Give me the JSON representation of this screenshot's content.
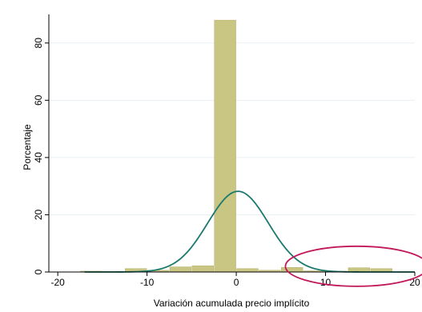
{
  "chart_data": {
    "type": "bar",
    "subtype": "histogram with normal density overlay",
    "title": "",
    "xlabel": "Variación acumulada precio implícito",
    "ylabel": "Porcentaje",
    "xlim": [
      -21,
      20
    ],
    "ylim": [
      0,
      90
    ],
    "x_ticks": [
      -20,
      -10,
      0,
      10,
      20
    ],
    "x_tick_labels": [
      "-20",
      "-10",
      "0",
      "10",
      "20"
    ],
    "y_ticks": [
      0,
      20,
      40,
      60,
      80
    ],
    "y_tick_labels": [
      "0",
      "20",
      "40",
      "60",
      "80"
    ],
    "grid": true,
    "legend": "none",
    "bin_width": 2.5,
    "bins": [
      {
        "start": -17.5,
        "end": -15.0,
        "value": 0.3
      },
      {
        "start": -15.0,
        "end": -12.5,
        "value": 0.2
      },
      {
        "start": -12.5,
        "end": -10.0,
        "value": 1.2
      },
      {
        "start": -10.0,
        "end": -7.5,
        "value": 0.6
      },
      {
        "start": -7.5,
        "end": -5.0,
        "value": 1.8
      },
      {
        "start": -5.0,
        "end": -2.5,
        "value": 2.2
      },
      {
        "start": -2.5,
        "end": 0.0,
        "value": 88.0
      },
      {
        "start": 0.0,
        "end": 2.5,
        "value": 1.2
      },
      {
        "start": 2.5,
        "end": 5.0,
        "value": 0.6
      },
      {
        "start": 5.0,
        "end": 7.5,
        "value": 1.6
      },
      {
        "start": 7.5,
        "end": 10.0,
        "value": 0.4
      },
      {
        "start": 10.0,
        "end": 12.5,
        "value": 0.3
      },
      {
        "start": 12.5,
        "end": 15.0,
        "value": 1.5
      },
      {
        "start": 15.0,
        "end": 17.5,
        "value": 1.2
      }
    ],
    "normal_curve": {
      "mean": 0.2,
      "sd": 3.4,
      "peak": 28.2
    },
    "annotation": {
      "type": "ellipse",
      "center_x": 13.5,
      "center_y": 2.0,
      "x_radius": 8.0,
      "y_radius": 7.0,
      "color": "#c0185a"
    },
    "colors": {
      "bar": "#c9c583",
      "bar_edge": "#b7b16c",
      "curve": "#1b7a6e",
      "grid": "#e6f1f3",
      "annotation": "#c0185a"
    }
  }
}
